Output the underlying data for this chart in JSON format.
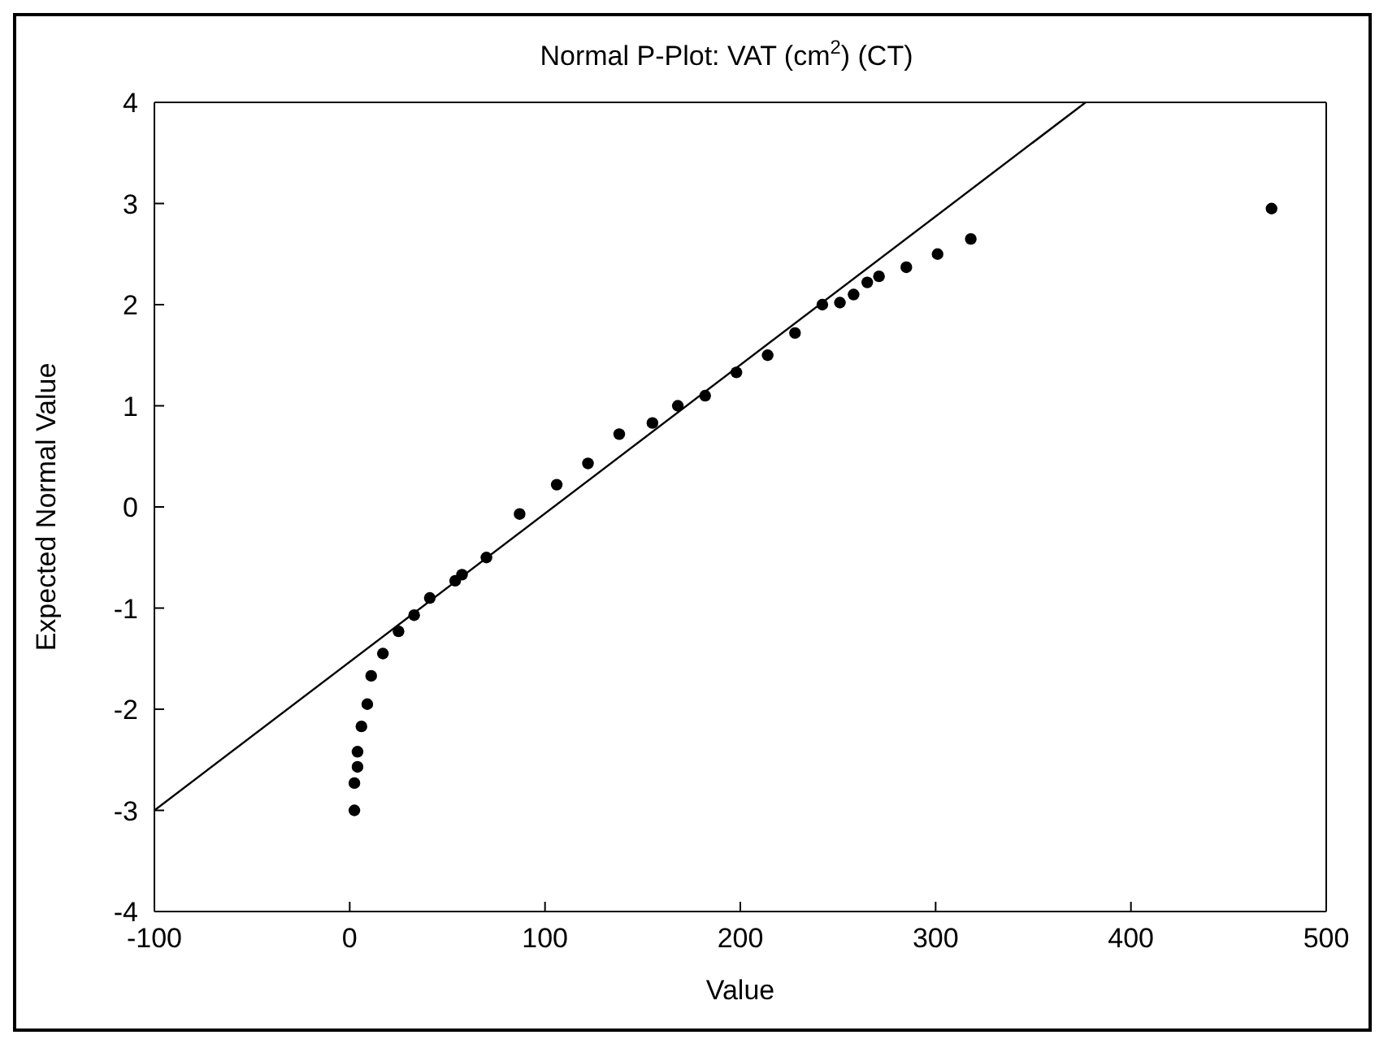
{
  "chart_data": {
    "type": "scatter",
    "title": "Normal P-Plot: VAT (cm$^{2}$) (CT)",
    "xlabel": "Value",
    "ylabel": "Expected Normal Value",
    "xlim": [
      -100,
      500
    ],
    "xticks": [
      -100,
      0,
      100,
      200,
      300,
      400,
      500
    ],
    "ylim": [
      -4,
      4
    ],
    "yticks": [
      -4,
      -3,
      -2,
      -1,
      0,
      1,
      2,
      3,
      4
    ],
    "marker": "circle",
    "series": [
      {
        "color": "#000000",
        "x": [
          2.4,
          2.4,
          4,
          4,
          6,
          9,
          11,
          17,
          25,
          33,
          41,
          54,
          57.5,
          70,
          87,
          106,
          122,
          138,
          155,
          168,
          182,
          198,
          214,
          228,
          242,
          251,
          258,
          265,
          271,
          285,
          301,
          318,
          472
        ],
        "values": [
          -3.0,
          -2.73,
          -2.57,
          -2.42,
          -2.17,
          -1.95,
          -1.67,
          -1.45,
          -1.23,
          -1.07,
          -0.9,
          -0.73,
          -0.67,
          -0.5,
          -0.07,
          0.22,
          0.43,
          0.72,
          0.83,
          1.0,
          1.1,
          1.33,
          1.5,
          1.72,
          2.0,
          2.02,
          2.1,
          2.22,
          2.28,
          2.37,
          2.5,
          2.65,
          2.95
        ]
      },
      {
        "type": "line",
        "color": "#000000",
        "x": [
          -100,
          376.8
        ],
        "values": [
          -3,
          4
        ],
        "line_style": "solid",
        "marker": "none"
      }
    ]
  }
}
